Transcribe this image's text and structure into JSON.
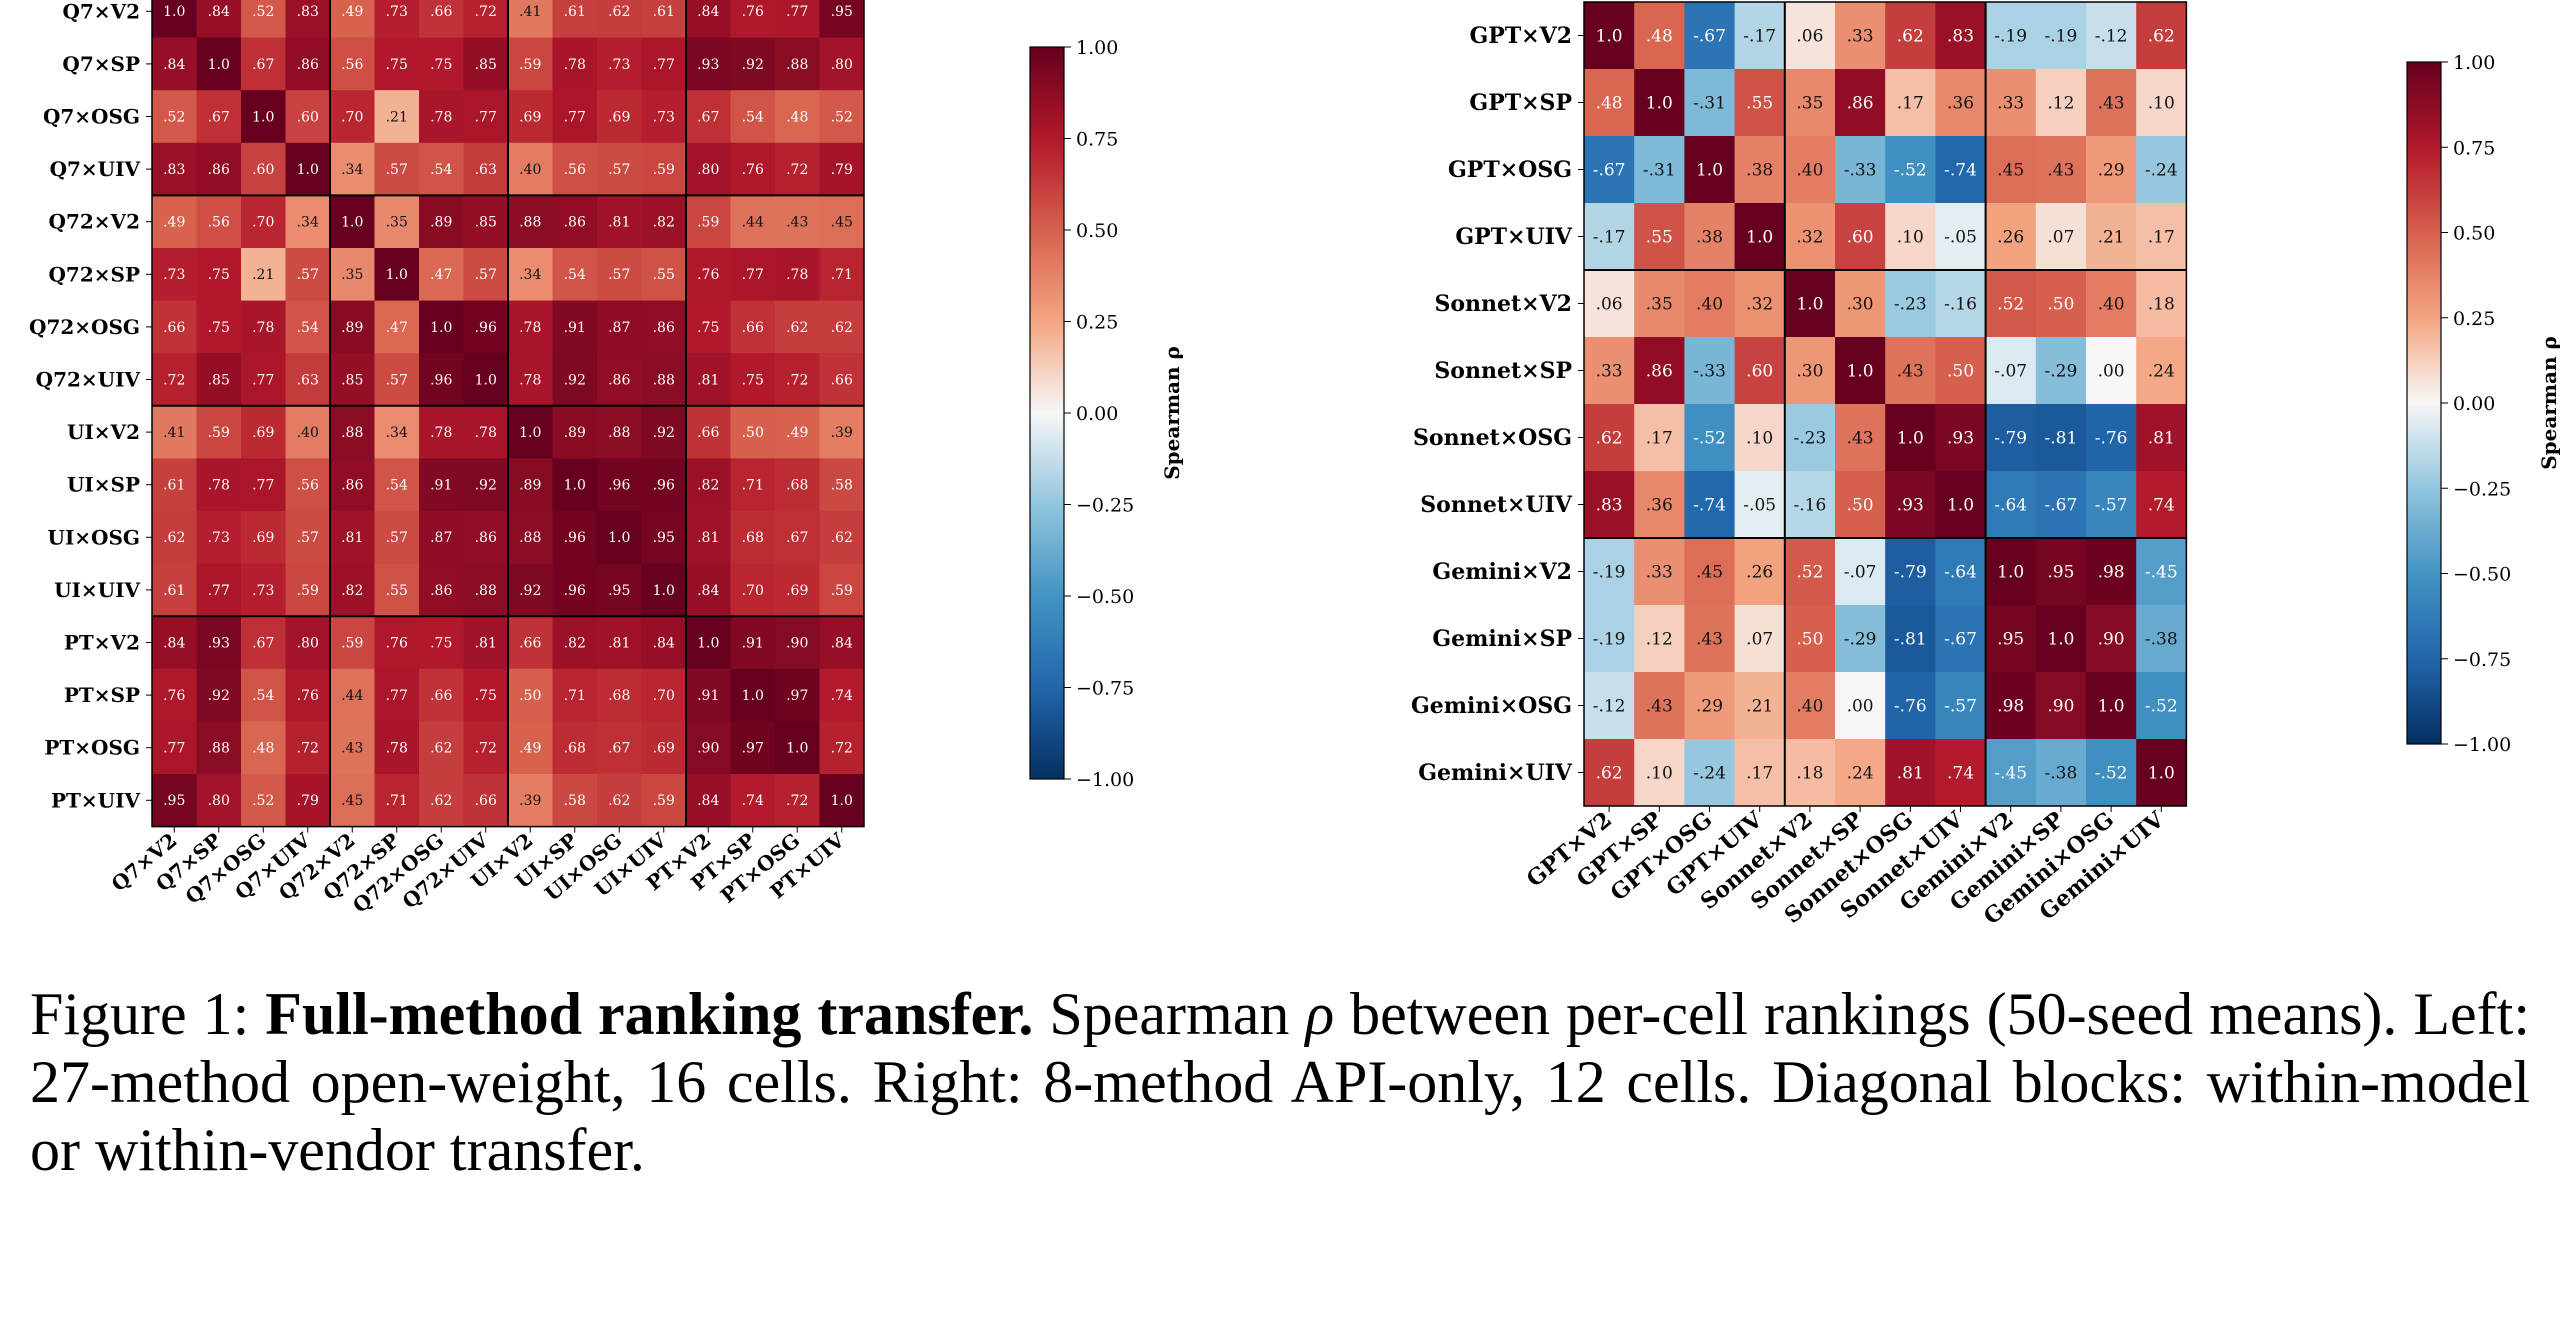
{
  "chart_data": [
    {
      "type": "heatmap",
      "labels": [
        "Q7×V2",
        "Q7×SP",
        "Q7×OSG",
        "Q7×UIV",
        "Q72×V2",
        "Q72×SP",
        "Q72×OSG",
        "Q72×UIV",
        "UI×V2",
        "UI×SP",
        "UI×OSG",
        "UI×UIV",
        "PT×V2",
        "PT×SP",
        "PT×OSG",
        "PT×UIV"
      ],
      "values": [
        [
          1.0,
          0.84,
          0.52,
          0.83,
          0.49,
          0.73,
          0.66,
          0.72,
          0.41,
          0.61,
          0.62,
          0.61,
          0.84,
          0.76,
          0.77,
          0.95
        ],
        [
          0.84,
          1.0,
          0.67,
          0.86,
          0.56,
          0.75,
          0.75,
          0.85,
          0.59,
          0.78,
          0.73,
          0.77,
          0.93,
          0.92,
          0.88,
          0.8
        ],
        [
          0.52,
          0.67,
          1.0,
          0.6,
          0.7,
          0.21,
          0.78,
          0.77,
          0.69,
          0.77,
          0.69,
          0.73,
          0.67,
          0.54,
          0.48,
          0.52
        ],
        [
          0.83,
          0.86,
          0.6,
          1.0,
          0.34,
          0.57,
          0.54,
          0.63,
          0.4,
          0.56,
          0.57,
          0.59,
          0.8,
          0.76,
          0.72,
          0.79
        ],
        [
          0.49,
          0.56,
          0.7,
          0.34,
          1.0,
          0.35,
          0.89,
          0.85,
          0.88,
          0.86,
          0.81,
          0.82,
          0.59,
          0.44,
          0.43,
          0.45
        ],
        [
          0.73,
          0.75,
          0.21,
          0.57,
          0.35,
          1.0,
          0.47,
          0.57,
          0.34,
          0.54,
          0.57,
          0.55,
          0.76,
          0.77,
          0.78,
          0.71
        ],
        [
          0.66,
          0.75,
          0.78,
          0.54,
          0.89,
          0.47,
          1.0,
          0.96,
          0.78,
          0.91,
          0.87,
          0.86,
          0.75,
          0.66,
          0.62,
          0.62
        ],
        [
          0.72,
          0.85,
          0.77,
          0.63,
          0.85,
          0.57,
          0.96,
          1.0,
          0.78,
          0.92,
          0.86,
          0.88,
          0.81,
          0.75,
          0.72,
          0.66
        ],
        [
          0.41,
          0.59,
          0.69,
          0.4,
          0.88,
          0.34,
          0.78,
          0.78,
          1.0,
          0.89,
          0.88,
          0.92,
          0.66,
          0.5,
          0.49,
          0.39
        ],
        [
          0.61,
          0.78,
          0.77,
          0.56,
          0.86,
          0.54,
          0.91,
          0.92,
          0.89,
          1.0,
          0.96,
          0.96,
          0.82,
          0.71,
          0.68,
          0.58
        ],
        [
          0.62,
          0.73,
          0.69,
          0.57,
          0.81,
          0.57,
          0.87,
          0.86,
          0.88,
          0.96,
          1.0,
          0.95,
          0.81,
          0.68,
          0.67,
          0.62
        ],
        [
          0.61,
          0.77,
          0.73,
          0.59,
          0.82,
          0.55,
          0.86,
          0.88,
          0.92,
          0.96,
          0.95,
          1.0,
          0.84,
          0.7,
          0.69,
          0.59
        ],
        [
          0.84,
          0.93,
          0.67,
          0.8,
          0.59,
          0.76,
          0.75,
          0.81,
          0.66,
          0.82,
          0.81,
          0.84,
          1.0,
          0.91,
          0.9,
          0.84
        ],
        [
          0.76,
          0.92,
          0.54,
          0.76,
          0.44,
          0.77,
          0.66,
          0.75,
          0.5,
          0.71,
          0.68,
          0.7,
          0.91,
          1.0,
          0.97,
          0.74
        ],
        [
          0.77,
          0.88,
          0.48,
          0.72,
          0.43,
          0.78,
          0.62,
          0.72,
          0.49,
          0.68,
          0.67,
          0.69,
          0.9,
          0.97,
          1.0,
          0.72
        ],
        [
          0.95,
          0.8,
          0.52,
          0.79,
          0.45,
          0.71,
          0.62,
          0.66,
          0.39,
          0.58,
          0.62,
          0.59,
          0.84,
          0.74,
          0.72,
          1.0
        ]
      ],
      "block_size": 4,
      "colorbar": {
        "label": "Spearman ρ",
        "min": -1.0,
        "max": 1.0,
        "ticks": [
          "1.00",
          "0.75",
          "0.50",
          "0.25",
          "0.00",
          "−0.25",
          "−0.50",
          "−0.75",
          "−1.00"
        ]
      }
    },
    {
      "type": "heatmap",
      "labels": [
        "GPT×V2",
        "GPT×SP",
        "GPT×OSG",
        "GPT×UIV",
        "Sonnet×V2",
        "Sonnet×SP",
        "Sonnet×OSG",
        "Sonnet×UIV",
        "Gemini×V2",
        "Gemini×SP",
        "Gemini×OSG",
        "Gemini×UIV"
      ],
      "values": [
        [
          1.0,
          0.48,
          -0.67,
          -0.17,
          0.06,
          0.33,
          0.62,
          0.83,
          -0.19,
          -0.19,
          -0.12,
          0.62
        ],
        [
          0.48,
          1.0,
          -0.31,
          0.55,
          0.35,
          0.86,
          0.17,
          0.36,
          0.33,
          0.12,
          0.43,
          0.1
        ],
        [
          -0.67,
          -0.31,
          1.0,
          0.38,
          0.4,
          -0.33,
          -0.52,
          -0.74,
          0.45,
          0.43,
          0.29,
          -0.24
        ],
        [
          -0.17,
          0.55,
          0.38,
          1.0,
          0.32,
          0.6,
          0.1,
          -0.05,
          0.26,
          0.07,
          0.21,
          0.17
        ],
        [
          0.06,
          0.35,
          0.4,
          0.32,
          1.0,
          0.3,
          -0.23,
          -0.16,
          0.52,
          0.5,
          0.4,
          0.18
        ],
        [
          0.33,
          0.86,
          -0.33,
          0.6,
          0.3,
          1.0,
          0.43,
          0.5,
          -0.07,
          -0.29,
          0.0,
          0.24
        ],
        [
          0.62,
          0.17,
          -0.52,
          0.1,
          -0.23,
          0.43,
          1.0,
          0.93,
          -0.79,
          -0.81,
          -0.76,
          0.81
        ],
        [
          0.83,
          0.36,
          -0.74,
          -0.05,
          -0.16,
          0.5,
          0.93,
          1.0,
          -0.64,
          -0.67,
          -0.57,
          0.74
        ],
        [
          -0.19,
          0.33,
          0.45,
          0.26,
          0.52,
          -0.07,
          -0.79,
          -0.64,
          1.0,
          0.95,
          0.98,
          -0.45
        ],
        [
          -0.19,
          0.12,
          0.43,
          0.07,
          0.5,
          -0.29,
          -0.81,
          -0.67,
          0.95,
          1.0,
          0.9,
          -0.38
        ],
        [
          -0.12,
          0.43,
          0.29,
          0.21,
          0.4,
          0.0,
          -0.76,
          -0.57,
          0.98,
          0.9,
          1.0,
          -0.52
        ],
        [
          0.62,
          0.1,
          -0.24,
          0.17,
          0.18,
          0.24,
          0.81,
          0.74,
          -0.45,
          -0.38,
          -0.52,
          1.0
        ]
      ],
      "block_size": 4,
      "colorbar": {
        "label": "Spearman ρ",
        "min": -1.0,
        "max": 1.0,
        "ticks": [
          "1.00",
          "0.75",
          "0.50",
          "0.25",
          "0.00",
          "−0.25",
          "−0.50",
          "−0.75",
          "−1.00"
        ]
      }
    }
  ],
  "caption": {
    "prefix": "Figure 1: ",
    "title": "Full-method ranking transfer.",
    "text_before_rho": " Spearman ",
    "rho": "ρ",
    "text_after_rho": " between per-cell rankings (50-seed means). Left: 27-method open-weight, 16 cells. Right: 8-method API-only, 12 cells. Diagonal blocks: within-model or within-vendor transfer."
  }
}
